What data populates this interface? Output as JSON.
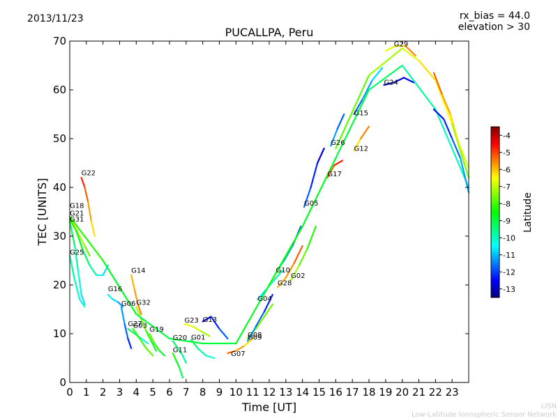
{
  "header": {
    "date": "2013/11/23",
    "rx_bias": "rx_bias = 44.0",
    "elevation": "elevation > 30"
  },
  "footer": {
    "org_short": "LISN",
    "org_long": "Low-Latitude Ionospheric Sensor Network"
  },
  "chart_data": {
    "type": "line",
    "title": "PUCALLPA, Peru",
    "xlabel": "Time [UT]",
    "ylabel": "TEC [UNITS]",
    "xlim": [
      0,
      24
    ],
    "ylim": [
      0,
      70
    ],
    "xticks": [
      "0",
      "1",
      "2",
      "3",
      "4",
      "5",
      "6",
      "7",
      "8",
      "9",
      "10",
      "11",
      "12",
      "13",
      "14",
      "15",
      "16",
      "17",
      "18",
      "19",
      "20",
      "21",
      "22",
      "23"
    ],
    "yticks": [
      "0",
      "10",
      "20",
      "30",
      "40",
      "50",
      "60",
      "70"
    ],
    "colorbar": {
      "label": "Latitude",
      "range": [
        -13.5,
        -3.5
      ],
      "ticks": [
        "-4",
        "-5",
        "-6",
        "-7",
        "-8",
        "-9",
        "-10",
        "-11",
        "-12",
        "-13"
      ],
      "colors": [
        "#00007f",
        "#0000ff",
        "#007fff",
        "#00ffff",
        "#00ff7f",
        "#00ff00",
        "#7fff00",
        "#ffff00",
        "#ff7f00",
        "#ff0000",
        "#7f0000"
      ]
    },
    "series": [
      {
        "name": "G22",
        "label_x": 0.7,
        "label_y": 42.5,
        "points": [
          [
            0.7,
            42
          ],
          [
            0.9,
            40
          ],
          [
            1.1,
            37
          ],
          [
            1.3,
            33
          ],
          [
            1.5,
            30
          ]
        ],
        "lat": [
          -4.5,
          -5,
          -5.5,
          -6,
          -6.5
        ]
      },
      {
        "name": "G18",
        "label_x": 0.0,
        "label_y": 35.8,
        "points": [
          [
            0,
            34
          ],
          [
            0.3,
            32
          ],
          [
            0.6,
            30
          ],
          [
            0.9,
            28
          ],
          [
            1.2,
            26
          ]
        ],
        "lat": [
          -6,
          -6.5,
          -7,
          -7.5,
          -8
        ]
      },
      {
        "name": "G21",
        "label_x": 0.0,
        "label_y": 34.2,
        "points": [
          [
            0,
            33.5
          ],
          [
            0.4,
            31
          ],
          [
            0.8,
            27
          ],
          [
            1.2,
            24
          ],
          [
            1.6,
            22
          ],
          [
            2.0,
            22
          ],
          [
            2.3,
            24
          ]
        ],
        "lat": [
          -8,
          -8.5,
          -9,
          -9.5,
          -10,
          -10.5,
          -11
        ]
      },
      {
        "name": "G31",
        "label_x": 0.0,
        "label_y": 33.0,
        "points": [
          [
            0,
            33
          ],
          [
            0.3,
            28
          ],
          [
            0.5,
            23
          ],
          [
            0.7,
            18
          ],
          [
            0.9,
            16
          ]
        ],
        "lat": [
          -9,
          -9.5,
          -10,
          -10.5,
          -11
        ]
      },
      {
        "name": "G25",
        "label_x": 0.0,
        "label_y": 26.2,
        "points": [
          [
            0,
            26
          ],
          [
            0.3,
            21
          ],
          [
            0.6,
            17
          ],
          [
            0.9,
            15.5
          ]
        ],
        "lat": [
          -9.5,
          -10,
          -10,
          -10.5
        ]
      },
      {
        "name": "G16",
        "label_x": 2.3,
        "label_y": 18.7,
        "points": [
          [
            2.3,
            18
          ],
          [
            2.6,
            17
          ],
          [
            2.9,
            16.5
          ],
          [
            3.2,
            15.5
          ]
        ],
        "lat": [
          -10,
          -10.5,
          -11,
          -11.5
        ]
      },
      {
        "name": "G14",
        "label_x": 3.7,
        "label_y": 22.5,
        "points": [
          [
            3.7,
            22
          ],
          [
            3.9,
            19
          ],
          [
            4.1,
            16
          ],
          [
            4.3,
            14
          ]
        ],
        "lat": [
          -6,
          -5.8,
          -5.6,
          -5.5
        ]
      },
      {
        "name": "G06",
        "label_x": 3.1,
        "label_y": 15.7,
        "points": [
          [
            3.1,
            15.5
          ],
          [
            3.3,
            12
          ],
          [
            3.5,
            9
          ],
          [
            3.7,
            7
          ]
        ],
        "lat": [
          -11,
          -11.5,
          -12,
          -12.5
        ]
      },
      {
        "name": "G32",
        "label_x": 4.0,
        "label_y": 15.9,
        "points": [
          [
            4.0,
            15.5
          ],
          [
            4.3,
            13
          ],
          [
            4.6,
            10.5
          ],
          [
            4.9,
            8.5
          ],
          [
            5.2,
            6.5
          ]
        ],
        "lat": [
          -7,
          -7.5,
          -8,
          -8.5,
          -9
        ]
      },
      {
        "name": "G27",
        "label_x": 3.5,
        "label_y": 11.6,
        "points": [
          [
            3.5,
            11
          ],
          [
            3.9,
            10
          ],
          [
            4.3,
            9
          ],
          [
            4.7,
            8
          ]
        ],
        "lat": [
          -9,
          -9.5,
          -10,
          -10.5
        ]
      },
      {
        "name": "G03",
        "label_x": 3.8,
        "label_y": 11.2,
        "points": [
          [
            3.8,
            11
          ],
          [
            4.2,
            9
          ],
          [
            4.6,
            7
          ],
          [
            5.0,
            5.5
          ]
        ],
        "lat": [
          -8.5,
          -8,
          -8,
          -7.5
        ]
      },
      {
        "name": "G19",
        "label_x": 4.8,
        "label_y": 10.4,
        "points": [
          [
            4.8,
            10
          ],
          [
            5.1,
            8
          ],
          [
            5.4,
            6.5
          ],
          [
            5.7,
            5.5
          ]
        ],
        "lat": [
          -7.5,
          -8,
          -8.5,
          -9
        ]
      },
      {
        "name": "G20",
        "label_x": 6.2,
        "label_y": 8.7,
        "points": [
          [
            6.2,
            8.5
          ],
          [
            6.5,
            7
          ],
          [
            6.8,
            5.5
          ],
          [
            7.0,
            4
          ]
        ],
        "lat": [
          -9,
          -9.5,
          -9.5,
          -10
        ]
      },
      {
        "name": "G11",
        "label_x": 6.2,
        "label_y": 6.2,
        "points": [
          [
            6.2,
            6
          ],
          [
            6.4,
            4.5
          ],
          [
            6.6,
            3
          ],
          [
            6.8,
            1
          ]
        ],
        "lat": [
          -8,
          -8.5,
          -9,
          -9.5
        ]
      },
      {
        "name": "G01",
        "label_x": 7.3,
        "label_y": 8.8,
        "points": [
          [
            7.3,
            8.8
          ],
          [
            7.7,
            7
          ],
          [
            8.2,
            5.5
          ],
          [
            8.7,
            5
          ]
        ],
        "lat": [
          -9,
          -9.5,
          -10,
          -10.5
        ]
      },
      {
        "name": "G23",
        "label_x": 6.9,
        "label_y": 12.3,
        "points": [
          [
            6.9,
            12
          ],
          [
            7.4,
            11.5
          ],
          [
            7.9,
            10.5
          ],
          [
            8.4,
            9.5
          ]
        ],
        "lat": [
          -6.5,
          -6.8,
          -7,
          -7.5
        ]
      },
      {
        "name": "G13",
        "label_x": 8.0,
        "label_y": 12.4,
        "points": [
          [
            8.0,
            12.5
          ],
          [
            8.5,
            13.5
          ],
          [
            9.0,
            11
          ],
          [
            9.5,
            9
          ]
        ],
        "lat": [
          -13,
          -12.5,
          -12,
          -11.5
        ]
      },
      {
        "name": "G07",
        "label_x": 9.7,
        "label_y": 5.4,
        "points": [
          [
            9.5,
            6
          ],
          [
            10,
            6.5
          ],
          [
            10.5,
            7.5
          ],
          [
            11,
            9
          ]
        ],
        "lat": [
          -5,
          -5.5,
          -6,
          -6.5
        ]
      },
      {
        "name": "G08",
        "label_x": 10.7,
        "label_y": 9.3,
        "points": [
          [
            10.7,
            9
          ],
          [
            11.2,
            11
          ],
          [
            11.7,
            13.5
          ],
          [
            12.2,
            16
          ]
        ],
        "lat": [
          -7,
          -7.5,
          -7.5,
          -8
        ]
      },
      {
        "name": "G09",
        "label_x": 10.7,
        "label_y": 8.8,
        "points": [
          [
            10.7,
            8.5
          ],
          [
            11.2,
            11.5
          ],
          [
            11.7,
            14.5
          ],
          [
            12.2,
            18
          ]
        ],
        "lat": [
          -11,
          -11.5,
          -12,
          -12.5
        ]
      },
      {
        "name": "G04",
        "label_x": 11.3,
        "label_y": 16.7,
        "points": [
          [
            11.3,
            17
          ],
          [
            11.8,
            19
          ],
          [
            12.3,
            21
          ],
          [
            12.8,
            23
          ]
        ],
        "lat": [
          -11,
          -10.5,
          -10,
          -9.5
        ]
      },
      {
        "name": "G10",
        "label_x": 12.4,
        "label_y": 22.6,
        "points": [
          [
            12.4,
            22.5
          ],
          [
            12.9,
            25
          ],
          [
            13.4,
            28
          ],
          [
            13.9,
            32
          ]
        ],
        "lat": [
          -10.5,
          -11,
          -11.5,
          -12
        ]
      },
      {
        "name": "G28",
        "label_x": 12.5,
        "label_y": 19.9,
        "points": [
          [
            12.5,
            19.5
          ],
          [
            13.0,
            21.5
          ],
          [
            13.5,
            24.5
          ],
          [
            14.0,
            28
          ]
        ],
        "lat": [
          -6,
          -5.8,
          -5.5,
          -5
        ]
      },
      {
        "name": "G02",
        "label_x": 13.3,
        "label_y": 21.4,
        "points": [
          [
            13.3,
            21
          ],
          [
            13.8,
            24
          ],
          [
            14.3,
            27.5
          ],
          [
            14.8,
            32
          ]
        ],
        "lat": [
          -7,
          -7.5,
          -8,
          -8.5
        ]
      },
      {
        "name": "G05",
        "label_x": 14.1,
        "label_y": 36.3,
        "points": [
          [
            14.1,
            36
          ],
          [
            14.5,
            40
          ],
          [
            14.9,
            45
          ],
          [
            15.3,
            48
          ]
        ],
        "lat": [
          -11.5,
          -12,
          -12.5,
          -13
        ]
      },
      {
        "name": "G17",
        "label_x": 15.5,
        "label_y": 42.3,
        "points": [
          [
            15.5,
            42
          ],
          [
            15.9,
            44.5
          ],
          [
            16.4,
            45.5
          ]
        ],
        "lat": [
          -5.5,
          -5,
          -4.5
        ]
      },
      {
        "name": "G26",
        "label_x": 15.7,
        "label_y": 48.7,
        "points": [
          [
            15.7,
            48.5
          ],
          [
            16.1,
            52
          ],
          [
            16.5,
            55
          ]
        ],
        "lat": [
          -11,
          -11.5,
          -12
        ]
      },
      {
        "name": "G12",
        "label_x": 17.1,
        "label_y": 47.5,
        "points": [
          [
            17.1,
            47.5
          ],
          [
            17.5,
            50
          ],
          [
            18.0,
            52.5
          ]
        ],
        "lat": [
          -6.5,
          -6,
          -5
        ]
      },
      {
        "name": "G15",
        "label_x": 17.1,
        "label_y": 54.8,
        "points": [
          [
            17.1,
            55
          ],
          [
            17.6,
            58
          ],
          [
            18.2,
            62
          ],
          [
            18.8,
            64.5
          ]
        ],
        "lat": [
          -12,
          -11.5,
          -11,
          -10.5
        ]
      },
      {
        "name": "G24",
        "label_x": 18.9,
        "label_y": 61.1,
        "points": [
          [
            18.9,
            61
          ],
          [
            19.5,
            61.5
          ],
          [
            20.1,
            62.5
          ],
          [
            20.7,
            61.5
          ]
        ],
        "lat": [
          -13,
          -13,
          -12.5,
          -12.5
        ]
      },
      {
        "name": "G29",
        "label_x": 19.5,
        "label_y": 68.9,
        "points": [
          [
            19.0,
            68
          ],
          [
            19.6,
            69
          ],
          [
            20.2,
            69
          ],
          [
            20.8,
            67
          ]
        ],
        "lat": [
          -7,
          -6.5,
          -6,
          -5
        ]
      },
      {
        "name": "trend-lo",
        "label_x": null,
        "label_y": null,
        "points": [
          [
            0,
            34
          ],
          [
            2,
            25
          ],
          [
            4,
            14
          ],
          [
            6,
            9
          ],
          [
            8,
            8
          ],
          [
            10,
            8
          ],
          [
            12,
            20
          ],
          [
            14,
            32
          ],
          [
            16,
            46
          ],
          [
            18,
            60
          ],
          [
            20,
            65
          ],
          [
            22,
            56
          ],
          [
            24,
            40
          ]
        ],
        "lat": [
          -8,
          -8.5,
          -9,
          -9,
          -9,
          -9,
          -8.5,
          -8.5,
          -9,
          -9,
          -9.5,
          -10,
          -10
        ]
      },
      {
        "name": "trend-hi",
        "label_x": null,
        "label_y": null,
        "points": [
          [
            16,
            48
          ],
          [
            18,
            63
          ],
          [
            20,
            68.5
          ],
          [
            21,
            66
          ],
          [
            22,
            62
          ],
          [
            23,
            53
          ],
          [
            24,
            42
          ]
        ],
        "lat": [
          -8,
          -7.5,
          -7,
          -6.5,
          -6,
          -7,
          -8
        ]
      },
      {
        "name": "late-a",
        "label_x": null,
        "label_y": null,
        "points": [
          [
            21.9,
            63.5
          ],
          [
            22.4,
            59
          ],
          [
            22.9,
            55
          ],
          [
            23.4,
            49
          ],
          [
            24,
            44
          ]
        ],
        "lat": [
          -5,
          -5.5,
          -6,
          -6.5,
          -7
        ]
      },
      {
        "name": "late-b",
        "label_x": null,
        "label_y": null,
        "points": [
          [
            21.9,
            56
          ],
          [
            22.5,
            54
          ],
          [
            23.0,
            50
          ],
          [
            23.5,
            46
          ],
          [
            24,
            39
          ]
        ],
        "lat": [
          -12.5,
          -12.5,
          -12,
          -11.5,
          -11
        ]
      }
    ]
  }
}
